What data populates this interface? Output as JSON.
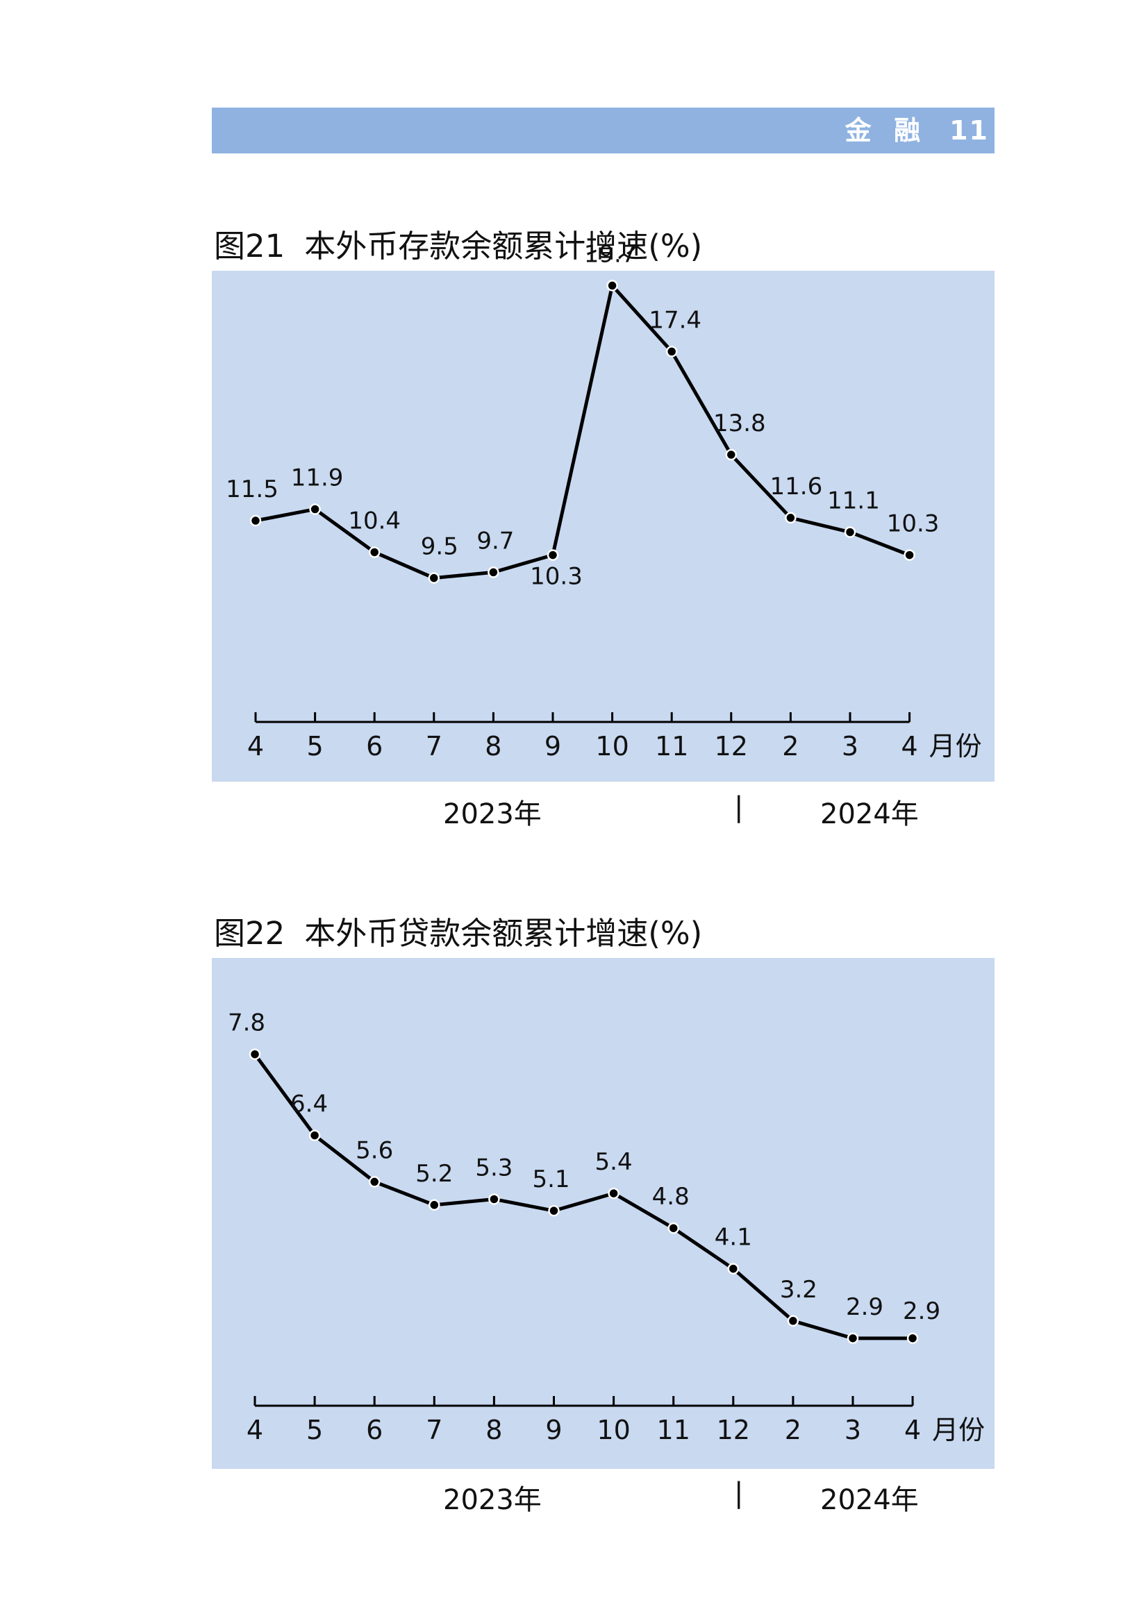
{
  "header": {
    "section": "金  融",
    "page": "11"
  },
  "charts": [
    {
      "id": "c1",
      "title_num": "图21",
      "title_text": "本外币存款余额累计增速(%)",
      "unit_label": "月份",
      "year_left": "2023年",
      "year_sep": "|",
      "year_right": "2024年"
    },
    {
      "id": "c2",
      "title_num": "图22",
      "title_text": "本外币贷款余额累计增速(%)",
      "unit_label": "月份",
      "year_left": "2023年",
      "year_sep": "|",
      "year_right": "2024年"
    }
  ],
  "chart_data": [
    {
      "type": "line",
      "title": "图21 本外币存款余额累计增速(%)",
      "categories": [
        "4",
        "5",
        "6",
        "7",
        "8",
        "9",
        "10",
        "11",
        "12",
        "2",
        "3",
        "4"
      ],
      "values": [
        11.5,
        11.9,
        10.4,
        9.5,
        9.7,
        10.3,
        19.7,
        17.4,
        13.8,
        11.6,
        11.1,
        10.3
      ],
      "labels": [
        "11.5",
        "11.9",
        "10.4",
        "9.5",
        "9.7",
        "10.3",
        "19.7",
        "17.4",
        "13.8",
        "11.6",
        "11.1",
        "10.3"
      ],
      "xlabel": "月份",
      "year_groups": [
        "2023年",
        "2024年"
      ],
      "grid": false,
      "line_color": "#000000",
      "background": "#c8d9f0"
    },
    {
      "type": "line",
      "title": "图22 本外币贷款余额累计增速(%)",
      "categories": [
        "4",
        "5",
        "6",
        "7",
        "8",
        "9",
        "10",
        "11",
        "12",
        "2",
        "3",
        "4"
      ],
      "values": [
        7.8,
        6.4,
        5.6,
        5.2,
        5.3,
        5.1,
        5.4,
        4.8,
        4.1,
        3.2,
        2.9,
        2.9
      ],
      "labels": [
        "7.8",
        "6.4",
        "5.6",
        "5.2",
        "5.3",
        "5.1",
        "5.4",
        "4.8",
        "4.1",
        "3.2",
        "2.9",
        "2.9"
      ],
      "xlabel": "月份",
      "year_groups": [
        "2023年",
        "2024年"
      ],
      "grid": false,
      "line_color": "#000000",
      "background": "#c8d9f0"
    }
  ]
}
